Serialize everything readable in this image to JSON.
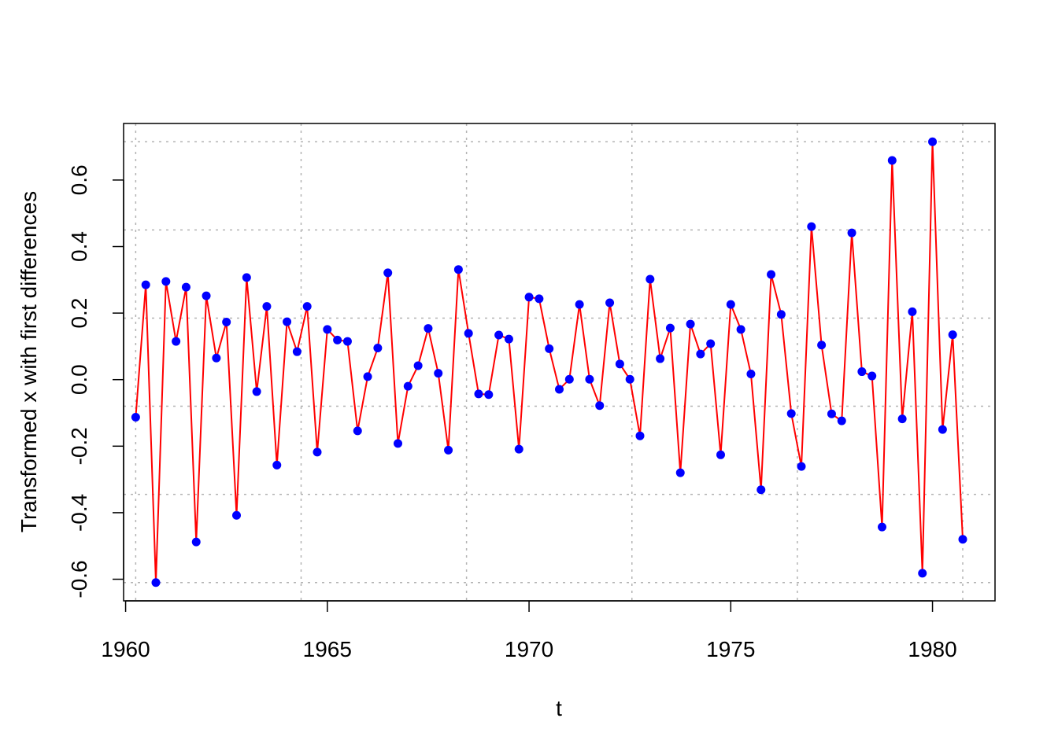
{
  "chart_data": {
    "type": "line",
    "title": "",
    "xlabel": "t",
    "ylabel": "Transformed x with first differences",
    "xlim": [
      1959.95,
      1981.55
    ],
    "ylim": [
      -0.665,
      0.77
    ],
    "x_ticks": [
      1960,
      1965,
      1970,
      1975,
      1980
    ],
    "x_tick_labels": [
      "1960",
      "1965",
      "1970",
      "1975",
      "1980"
    ],
    "y_ticks": [
      -0.6,
      -0.4,
      -0.2,
      0.0,
      0.2,
      0.4,
      0.6
    ],
    "y_tick_labels": [
      "-0.6",
      "-0.4",
      "-0.2",
      "0.0",
      "0.2",
      "0.4",
      "0.6"
    ],
    "grid": true,
    "grid_x": [
      1960.25,
      1964.35,
      1968.45,
      1972.55,
      1976.65,
      1980.75
    ],
    "grid_y": [
      -0.61,
      -0.345,
      -0.08,
      0.185,
      0.45,
      0.715
    ],
    "colors": {
      "line": "#ff0000",
      "points": "#0000ff",
      "grid": "#b3b3b3"
    },
    "x_start": 1960.25,
    "x_step": 0.25,
    "values": [
      -0.113,
      0.285,
      -0.61,
      0.295,
      0.115,
      0.278,
      -0.488,
      0.252,
      0.065,
      0.173,
      -0.408,
      0.307,
      -0.036,
      0.22,
      -0.257,
      0.174,
      0.084,
      0.22,
      -0.218,
      0.151,
      0.119,
      0.115,
      -0.154,
      0.009,
      0.095,
      0.321,
      -0.192,
      -0.02,
      0.042,
      0.154,
      0.019,
      -0.212,
      0.331,
      0.139,
      -0.043,
      -0.045,
      0.134,
      0.122,
      -0.209,
      0.248,
      0.243,
      0.093,
      -0.029,
      0.001,
      0.226,
      0.001,
      -0.078,
      0.231,
      0.047,
      0.001,
      -0.169,
      0.302,
      0.063,
      0.155,
      -0.28,
      0.167,
      0.077,
      0.108,
      -0.226,
      0.226,
      0.151,
      0.017,
      -0.331,
      0.316,
      0.196,
      -0.102,
      -0.261,
      0.46,
      0.104,
      -0.103,
      -0.124,
      0.441,
      0.024,
      0.011,
      -0.443,
      0.659,
      -0.118,
      0.204,
      -0.582,
      0.715,
      -0.15,
      0.135,
      -0.48
    ]
  }
}
